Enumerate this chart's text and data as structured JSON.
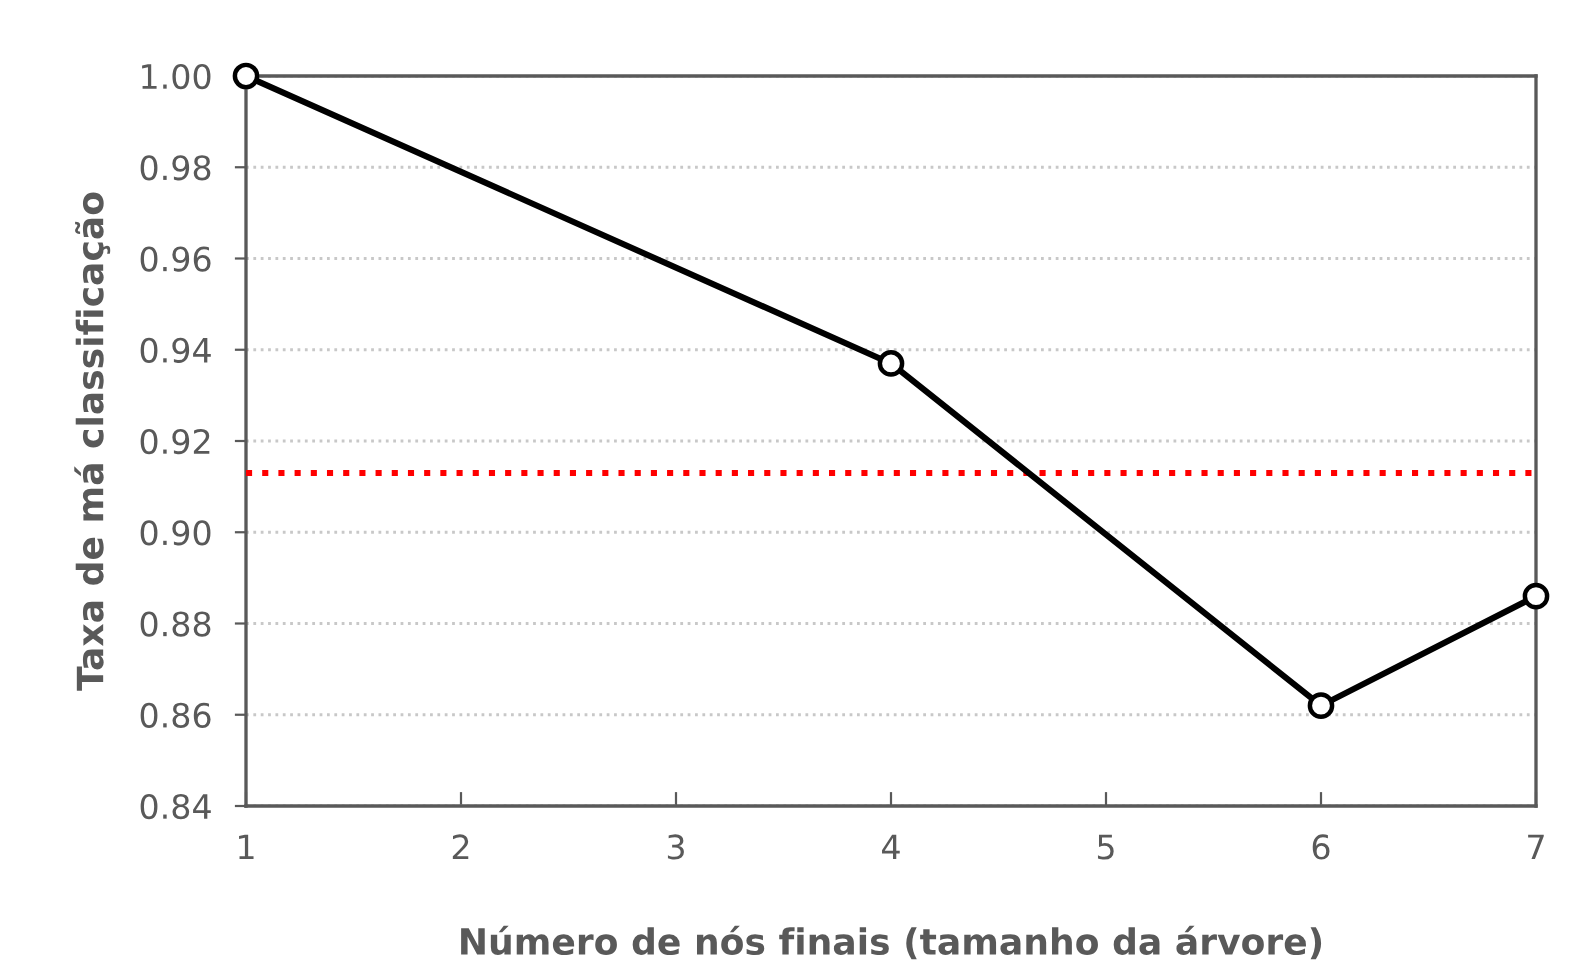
{
  "chart_data": {
    "type": "line",
    "xlabel": "Número de nós finais (tamanho da árvore)",
    "ylabel": "Taxa de má classificação",
    "x": [
      1,
      4,
      6,
      7
    ],
    "series": [
      {
        "color": "#000000",
        "values": [
          1.0,
          0.937,
          0.862,
          0.886
        ]
      }
    ],
    "marker": "circle",
    "line_style": "solid",
    "xlim": [
      1,
      7
    ],
    "xticks": [
      1,
      2,
      3,
      4,
      5,
      6,
      7
    ],
    "ylim": [
      0.84,
      1.0
    ],
    "yticks": [
      {
        "value": 0.84,
        "label": "0.84"
      },
      {
        "value": 0.86,
        "label": "0.86"
      },
      {
        "value": 0.88,
        "label": "0.88"
      },
      {
        "value": 0.9,
        "label": "0.90"
      },
      {
        "value": 0.92,
        "label": "0.92"
      },
      {
        "value": 0.94,
        "label": "0.94"
      },
      {
        "value": 0.96,
        "label": "0.96"
      },
      {
        "value": 0.98,
        "label": "0.98"
      },
      {
        "value": 1.0,
        "label": "1.00"
      }
    ],
    "grid": "y",
    "ref_lines": [
      {
        "axis": "y",
        "value": 0.913,
        "color": "#ff0000",
        "line_style": "dotted"
      }
    ]
  }
}
